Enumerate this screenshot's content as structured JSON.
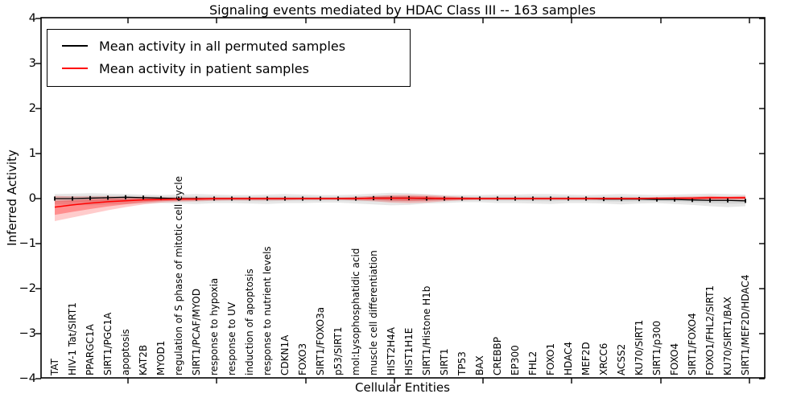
{
  "title": "Signaling events mediated by HDAC Class III -- 163 samples",
  "axes": {
    "xlabel": "Cellular Entities",
    "ylabel": "Inferred Activity",
    "ytick_labels": [
      "4",
      "3",
      "2",
      "1",
      "0",
      "−1",
      "−2",
      "−3",
      "−4"
    ],
    "ytick_values": [
      4,
      3,
      2,
      1,
      0,
      -1,
      -2,
      -3,
      -4
    ]
  },
  "legend": {
    "items": [
      {
        "label": "Mean activity in all permuted samples",
        "color": "#000000"
      },
      {
        "label": "Mean activity in patient samples",
        "color": "#ff0000"
      }
    ]
  },
  "chart_data": {
    "type": "line",
    "title": "Signaling events mediated by HDAC Class III -- 163 samples",
    "xlabel": "Cellular Entities",
    "ylabel": "Inferred Activity",
    "ylim": [
      -4,
      4
    ],
    "grid": false,
    "legend_position": "upper left",
    "categories": [
      "TAT",
      "HIV-1 Tat/SIRT1",
      "PPARGC1A",
      "SIRT1/PGC1A",
      "apoptosis",
      "KAT2B",
      "MYOD1",
      "regulation of S phase of mitotic cell cycle",
      "SIRT1/PCAF/MYOD",
      "response to hypoxia",
      "response to UV",
      "induction of apoptosis",
      "response to nutrient levels",
      "CDKN1A",
      "FOXO3",
      "SIRT1/FOXO3a",
      "p53/SIRT1",
      "mol:Lysophosphatidic acid",
      "muscle cell differentiation",
      "HIST2H4A",
      "HIST1H1E",
      "SIRT1/Histone H1b",
      "SIRT1",
      "TP53",
      "BAX",
      "CREBBP",
      "EP300",
      "FHL2",
      "FOXO1",
      "HDAC4",
      "MEF2D",
      "XRCC6",
      "ACSS2",
      "KU70/SIRT1",
      "SIRT1/p300",
      "FOXO4",
      "SIRT1/FOXO4",
      "FOXO1/FHL2/SIRT1",
      "KU70/SIRT1/BAX",
      "SIRT1/MEF2D/HDAC4"
    ],
    "series": [
      {
        "name": "Mean activity in all permuted samples",
        "color": "#000000",
        "values": [
          0.0,
          0.0,
          0.01,
          0.02,
          0.03,
          0.02,
          0.01,
          0.0,
          0.0,
          0.0,
          0.0,
          0.0,
          0.0,
          0.0,
          0.0,
          0.0,
          0.0,
          0.0,
          0.01,
          0.01,
          0.01,
          0.0,
          0.0,
          0.0,
          0.0,
          0.0,
          0.0,
          0.0,
          0.0,
          0.0,
          0.0,
          -0.01,
          -0.01,
          -0.01,
          -0.02,
          -0.02,
          -0.03,
          -0.04,
          -0.04,
          -0.05
        ]
      },
      {
        "name": "Mean activity in patient samples",
        "color": "#ff0000",
        "values": [
          -0.19,
          -0.14,
          -0.1,
          -0.07,
          -0.05,
          -0.03,
          -0.02,
          -0.01,
          -0.01,
          0.0,
          0.0,
          0.0,
          0.0,
          0.0,
          0.0,
          0.0,
          0.0,
          0.0,
          0.01,
          0.01,
          0.01,
          0.01,
          0.0,
          0.0,
          0.0,
          0.0,
          0.0,
          0.0,
          0.0,
          0.0,
          0.0,
          0.0,
          0.0,
          0.0,
          0.01,
          0.01,
          0.01,
          0.02,
          0.02,
          0.02
        ]
      }
    ],
    "bands": [
      {
        "name": "permuted samples activity range",
        "color": "#aaaaaa",
        "upper": [
          0.1,
          0.11,
          0.12,
          0.11,
          0.1,
          0.09,
          0.08,
          0.09,
          0.1,
          0.09,
          0.08,
          0.08,
          0.09,
          0.1,
          0.09,
          0.08,
          0.08,
          0.09,
          0.11,
          0.13,
          0.12,
          0.1,
          0.08,
          0.08,
          0.08,
          0.09,
          0.09,
          0.1,
          0.1,
          0.09,
          0.08,
          0.09,
          0.1,
          0.09,
          0.08,
          0.09,
          0.1,
          0.11,
          0.1,
          0.09
        ],
        "lower": [
          -0.13,
          -0.14,
          -0.15,
          -0.13,
          -0.12,
          -0.11,
          -0.1,
          -0.11,
          -0.12,
          -0.1,
          -0.1,
          -0.11,
          -0.12,
          -0.1,
          -0.1,
          -0.09,
          -0.09,
          -0.11,
          -0.13,
          -0.15,
          -0.14,
          -0.11,
          -0.1,
          -0.08,
          -0.08,
          -0.1,
          -0.1,
          -0.11,
          -0.12,
          -0.1,
          -0.1,
          -0.11,
          -0.13,
          -0.11,
          -0.1,
          -0.12,
          -0.14,
          -0.17,
          -0.19,
          -0.17
        ]
      },
      {
        "name": "patient samples activity range",
        "color": "#ff0000",
        "upper": [
          0.06,
          0.05,
          0.05,
          0.05,
          0.04,
          0.04,
          0.03,
          0.03,
          0.03,
          0.03,
          0.03,
          0.03,
          0.03,
          0.03,
          0.03,
          0.03,
          0.03,
          0.04,
          0.06,
          0.08,
          0.09,
          0.08,
          0.06,
          0.04,
          0.03,
          0.03,
          0.03,
          0.03,
          0.03,
          0.03,
          0.03,
          0.03,
          0.03,
          0.03,
          0.03,
          0.04,
          0.05,
          0.06,
          0.05,
          0.06
        ],
        "lower": [
          -0.5,
          -0.42,
          -0.34,
          -0.26,
          -0.19,
          -0.13,
          -0.09,
          -0.07,
          -0.06,
          -0.05,
          -0.04,
          -0.04,
          -0.04,
          -0.04,
          -0.03,
          -0.03,
          -0.03,
          -0.04,
          -0.06,
          -0.09,
          -0.1,
          -0.09,
          -0.06,
          -0.04,
          -0.03,
          -0.03,
          -0.03,
          -0.03,
          -0.03,
          -0.03,
          -0.03,
          -0.03,
          -0.03,
          -0.03,
          -0.03,
          -0.03,
          -0.04,
          -0.04,
          -0.03,
          -0.03
        ]
      }
    ]
  }
}
